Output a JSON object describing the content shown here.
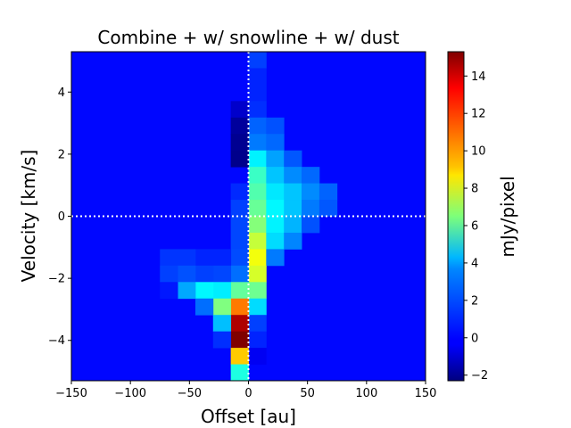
{
  "chart_data": {
    "type": "heatmap",
    "title": "Combine + w/ snowline + w/ dust",
    "xlabel": "Offset [au]",
    "ylabel": "Velocity [km/s]",
    "colorbar_label": "mJy/pixel",
    "colormap": "jet",
    "xlim": [
      -150,
      150
    ],
    "ylim": [
      -5.3,
      5.3
    ],
    "vlim": [
      -2.3,
      15.3
    ],
    "xticks": [
      -150,
      -100,
      -50,
      0,
      50,
      100,
      150
    ],
    "xtick_labels": [
      "−150",
      "−100",
      "−50",
      "0",
      "50",
      "100",
      "150"
    ],
    "yticks": [
      -4,
      -2,
      0,
      2,
      4
    ],
    "ytick_labels": [
      "−4",
      "−2",
      "0",
      "2",
      "4"
    ],
    "colorbar_ticks": [
      -2,
      0,
      2,
      4,
      6,
      8,
      10,
      12,
      14
    ],
    "colorbar_tick_labels": [
      "−2",
      "0",
      "2",
      "4",
      "6",
      "8",
      "10",
      "12",
      "14"
    ],
    "background_value": 0,
    "cell_width_au": 15,
    "cell_height_kms": 0.53,
    "reference_lines": [
      {
        "orientation": "vertical",
        "value": 0,
        "style": "dotted",
        "color": "#ffffff"
      },
      {
        "orientation": "horizontal",
        "value": 0,
        "style": "dotted",
        "color": "#ffffff"
      }
    ],
    "cells": [
      {
        "x": 7.5,
        "v": 5.035,
        "value": 1.0
      },
      {
        "x": 7.5,
        "v": 4.505,
        "value": 0.5
      },
      {
        "x": 7.5,
        "v": 3.975,
        "value": 0.5
      },
      {
        "x": 7.5,
        "v": 3.445,
        "value": 0.7
      },
      {
        "x": -7.5,
        "v": 3.445,
        "value": -1.0
      },
      {
        "x": 7.5,
        "v": 2.915,
        "value": 1.6
      },
      {
        "x": 22.5,
        "v": 2.915,
        "value": 1.3
      },
      {
        "x": -7.5,
        "v": 2.915,
        "value": -1.8
      },
      {
        "x": 7.5,
        "v": 2.385,
        "value": 2.0
      },
      {
        "x": 22.5,
        "v": 2.385,
        "value": 1.7
      },
      {
        "x": -7.5,
        "v": 2.385,
        "value": -2.0
      },
      {
        "x": 7.5,
        "v": 1.855,
        "value": 4.1
      },
      {
        "x": 22.5,
        "v": 1.855,
        "value": 2.7
      },
      {
        "x": 37.5,
        "v": 1.855,
        "value": 1.4
      },
      {
        "x": -7.5,
        "v": 1.855,
        "value": -2.1
      },
      {
        "x": 7.5,
        "v": 1.325,
        "value": 5.3
      },
      {
        "x": 22.5,
        "v": 1.325,
        "value": 3.3
      },
      {
        "x": 37.5,
        "v": 1.325,
        "value": 2.3
      },
      {
        "x": 52.5,
        "v": 1.325,
        "value": 1.7
      },
      {
        "x": 7.5,
        "v": 0.795,
        "value": 5.7
      },
      {
        "x": 22.5,
        "v": 0.795,
        "value": 3.9
      },
      {
        "x": 37.5,
        "v": 0.795,
        "value": 3.3
      },
      {
        "x": 52.5,
        "v": 0.795,
        "value": 2.3
      },
      {
        "x": 67.5,
        "v": 0.795,
        "value": 1.6
      },
      {
        "x": -7.5,
        "v": 0.795,
        "value": 0.6
      },
      {
        "x": 7.5,
        "v": 0.265,
        "value": 6.1
      },
      {
        "x": 22.5,
        "v": 0.265,
        "value": 4.2
      },
      {
        "x": 37.5,
        "v": 0.265,
        "value": 3.3
      },
      {
        "x": 52.5,
        "v": 0.265,
        "value": 2.0
      },
      {
        "x": 67.5,
        "v": 0.265,
        "value": 1.4
      },
      {
        "x": -7.5,
        "v": 0.265,
        "value": 1.0
      },
      {
        "x": 7.5,
        "v": -0.265,
        "value": 6.6
      },
      {
        "x": 22.5,
        "v": -0.265,
        "value": 4.1
      },
      {
        "x": 37.5,
        "v": -0.265,
        "value": 3.0
      },
      {
        "x": 52.5,
        "v": -0.265,
        "value": 1.3
      },
      {
        "x": -7.5,
        "v": -0.265,
        "value": 1.1
      },
      {
        "x": 7.5,
        "v": -0.795,
        "value": 7.7
      },
      {
        "x": 22.5,
        "v": -0.795,
        "value": 3.7
      },
      {
        "x": 37.5,
        "v": -0.795,
        "value": 2.2
      },
      {
        "x": -7.5,
        "v": -0.795,
        "value": 1.1
      },
      {
        "x": 7.5,
        "v": -1.325,
        "value": 8.5
      },
      {
        "x": 22.5,
        "v": -1.325,
        "value": 2.0
      },
      {
        "x": -7.5,
        "v": -1.325,
        "value": 1.2
      },
      {
        "x": -22.5,
        "v": -1.325,
        "value": 0.5
      },
      {
        "x": -37.5,
        "v": -1.325,
        "value": 0.5
      },
      {
        "x": -52.5,
        "v": -1.325,
        "value": 0.8
      },
      {
        "x": -67.5,
        "v": -1.325,
        "value": 0.8
      },
      {
        "x": 7.5,
        "v": -1.855,
        "value": 8.0
      },
      {
        "x": -7.5,
        "v": -1.855,
        "value": 1.8
      },
      {
        "x": -22.5,
        "v": -1.855,
        "value": 1.1
      },
      {
        "x": -37.5,
        "v": -1.855,
        "value": 1.0
      },
      {
        "x": -52.5,
        "v": -1.855,
        "value": 1.3
      },
      {
        "x": -67.5,
        "v": -1.855,
        "value": 1.0
      },
      {
        "x": 7.5,
        "v": -2.385,
        "value": 6.2
      },
      {
        "x": -7.5,
        "v": -2.385,
        "value": 6.0
      },
      {
        "x": -22.5,
        "v": -2.385,
        "value": 4.0
      },
      {
        "x": -37.5,
        "v": -2.385,
        "value": 4.2
      },
      {
        "x": -52.5,
        "v": -2.385,
        "value": 2.8
      },
      {
        "x": -67.5,
        "v": -2.385,
        "value": 0.3
      },
      {
        "x": 7.5,
        "v": -2.915,
        "value": 3.7
      },
      {
        "x": -7.5,
        "v": -2.915,
        "value": 11.0
      },
      {
        "x": -22.5,
        "v": -2.915,
        "value": 6.5
      },
      {
        "x": -37.5,
        "v": -2.915,
        "value": 1.8
      },
      {
        "x": 7.5,
        "v": -3.445,
        "value": 1.0
      },
      {
        "x": -7.5,
        "v": -3.445,
        "value": 14.5
      },
      {
        "x": -22.5,
        "v": -3.445,
        "value": 3.2
      },
      {
        "x": 7.5,
        "v": -3.975,
        "value": 0.5
      },
      {
        "x": -7.5,
        "v": -3.975,
        "value": 15.3
      },
      {
        "x": -22.5,
        "v": -3.975,
        "value": 0.7
      },
      {
        "x": 7.5,
        "v": -4.505,
        "value": -0.3
      },
      {
        "x": -7.5,
        "v": -4.505,
        "value": 9.6
      },
      {
        "x": -7.5,
        "v": -5.035,
        "value": 4.8
      },
      {
        "x": -7.5,
        "v": -5.565,
        "value": 1.8
      }
    ]
  }
}
